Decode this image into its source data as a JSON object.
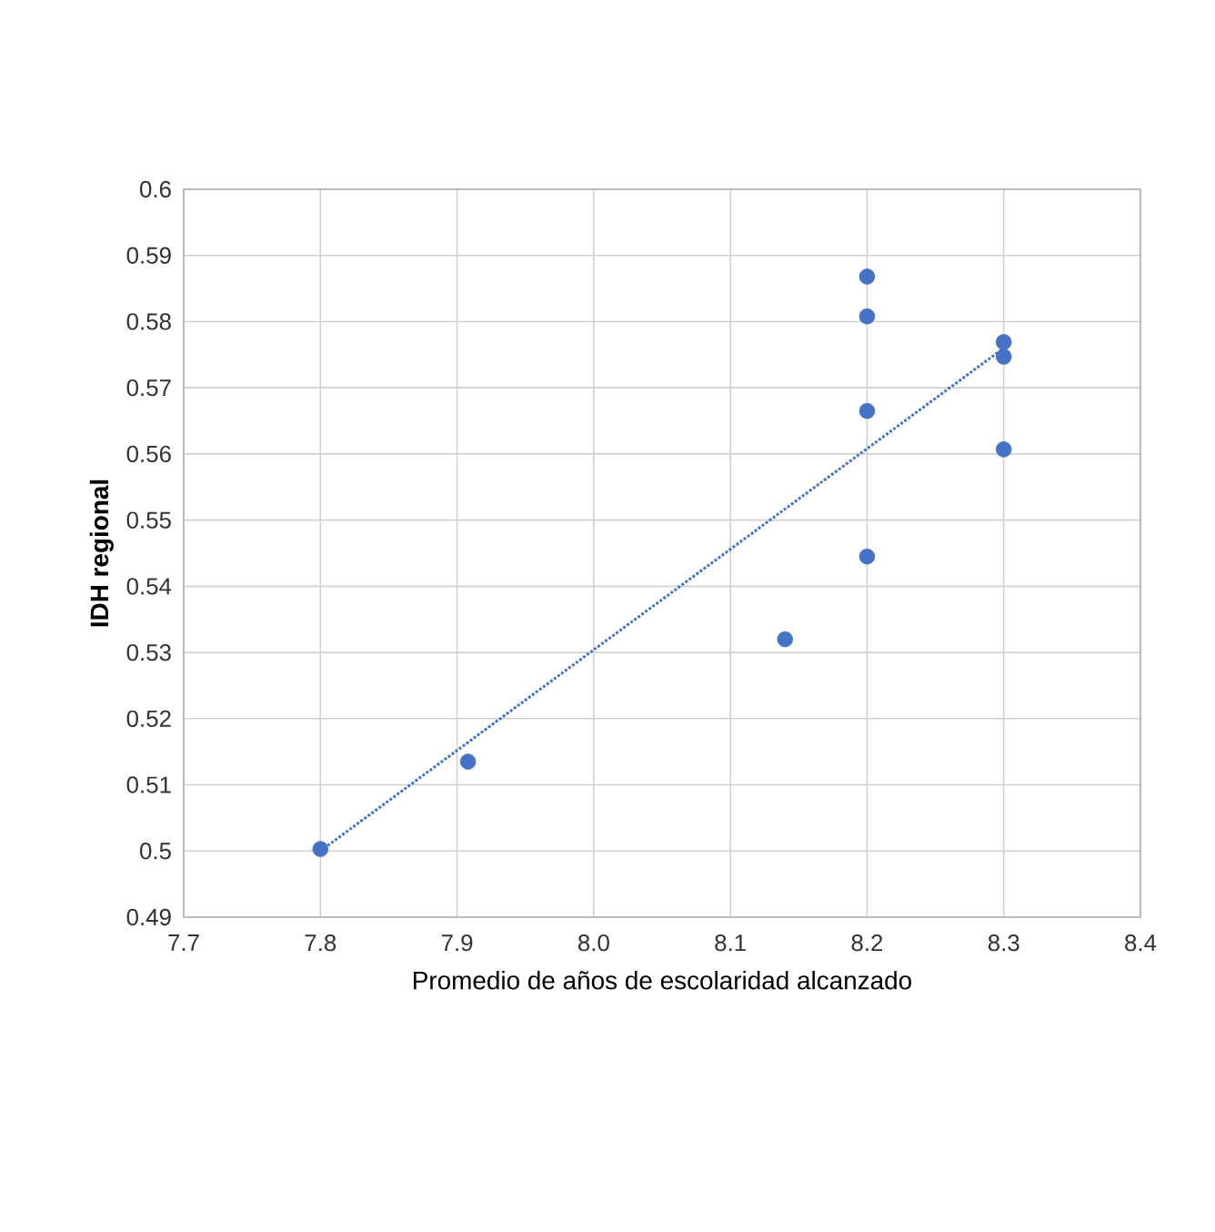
{
  "chart_data": {
    "type": "scatter",
    "xlabel": "Promedio de años de escolaridad alcanzado",
    "ylabel": "IDH regional",
    "xlim": [
      7.7,
      8.4
    ],
    "ylim": [
      0.49,
      0.6
    ],
    "xticks": [
      7.7,
      7.8,
      7.9,
      {
        "value": 8,
        "label": "8.0"
      },
      8.1,
      8.2,
      8.3,
      8.4
    ],
    "yticks": [
      0.49,
      0.5,
      0.51,
      0.52,
      0.53,
      0.54,
      0.55,
      0.56,
      0.57,
      0.58,
      0.59,
      0.6
    ],
    "grid": true,
    "series": [
      {
        "color": "#4472c4",
        "marker": "circle",
        "x": [
          7.8,
          7.908,
          8.14,
          8.2,
          8.2,
          8.2,
          8.2,
          8.3,
          8.3,
          8.3
        ],
        "values": [
          0.5003,
          0.5135,
          0.532,
          0.5868,
          0.5808,
          0.5665,
          0.5445,
          0.5769,
          0.5747,
          0.5607
        ]
      },
      {
        "type": "line",
        "color": "#4472c4",
        "marker": "none",
        "line_style": "dotted",
        "x": [
          7.8,
          8.3
        ],
        "values": [
          0.5,
          0.576
        ]
      }
    ]
  }
}
